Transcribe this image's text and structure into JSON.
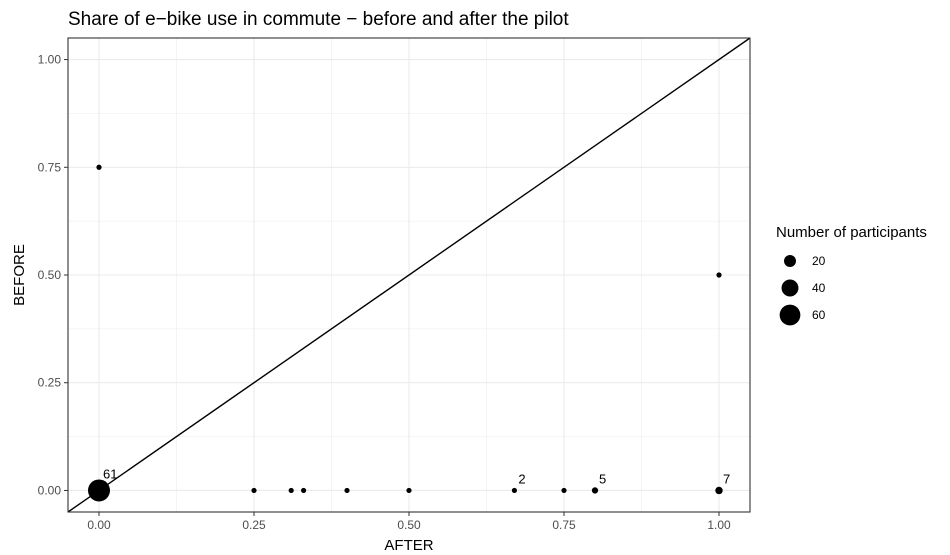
{
  "chart_data": {
    "type": "scatter",
    "title": "Share of e−bike use in commute − before and after the pilot",
    "xlabel": "AFTER",
    "ylabel": "BEFORE",
    "xlim": [
      -0.05,
      1.05
    ],
    "ylim": [
      -0.05,
      1.05
    ],
    "x_ticks": [
      0.0,
      0.25,
      0.5,
      0.75,
      1.0
    ],
    "x_tick_labels": [
      "0.00",
      "0.25",
      "0.50",
      "0.75",
      "1.00"
    ],
    "y_ticks": [
      0.0,
      0.25,
      0.5,
      0.75,
      1.0
    ],
    "y_tick_labels": [
      "0.00",
      "0.25",
      "0.50",
      "0.75",
      "1.00"
    ],
    "reference_line": "y = x",
    "grid": true,
    "size_legend": {
      "title": "Number of participants",
      "position": "right",
      "entries": [
        {
          "label": "20",
          "value": 20
        },
        {
          "label": "40",
          "value": 40
        },
        {
          "label": "60",
          "value": 60
        }
      ]
    },
    "points": [
      {
        "x": 0.0,
        "y": 0.0,
        "n": 61,
        "label": "61"
      },
      {
        "x": 0.0,
        "y": 0.75,
        "n": 1,
        "label": ""
      },
      {
        "x": 0.25,
        "y": 0.0,
        "n": 1,
        "label": ""
      },
      {
        "x": 0.31,
        "y": 0.0,
        "n": 1,
        "label": ""
      },
      {
        "x": 0.33,
        "y": 0.0,
        "n": 1,
        "label": ""
      },
      {
        "x": 0.4,
        "y": 0.0,
        "n": 1,
        "label": ""
      },
      {
        "x": 0.5,
        "y": 0.0,
        "n": 1,
        "label": ""
      },
      {
        "x": 0.67,
        "y": 0.0,
        "n": 2,
        "label": "2"
      },
      {
        "x": 0.75,
        "y": 0.0,
        "n": 1,
        "label": ""
      },
      {
        "x": 0.8,
        "y": 0.0,
        "n": 5,
        "label": "5"
      },
      {
        "x": 1.0,
        "y": 0.0,
        "n": 7,
        "label": "7"
      },
      {
        "x": 1.0,
        "y": 0.5,
        "n": 1,
        "label": ""
      }
    ],
    "colors": {
      "point": "#000000",
      "grid": "#ebebeb",
      "panel_border": "#333333",
      "tick_label": "#4d4d4d",
      "background": "#ffffff"
    }
  }
}
